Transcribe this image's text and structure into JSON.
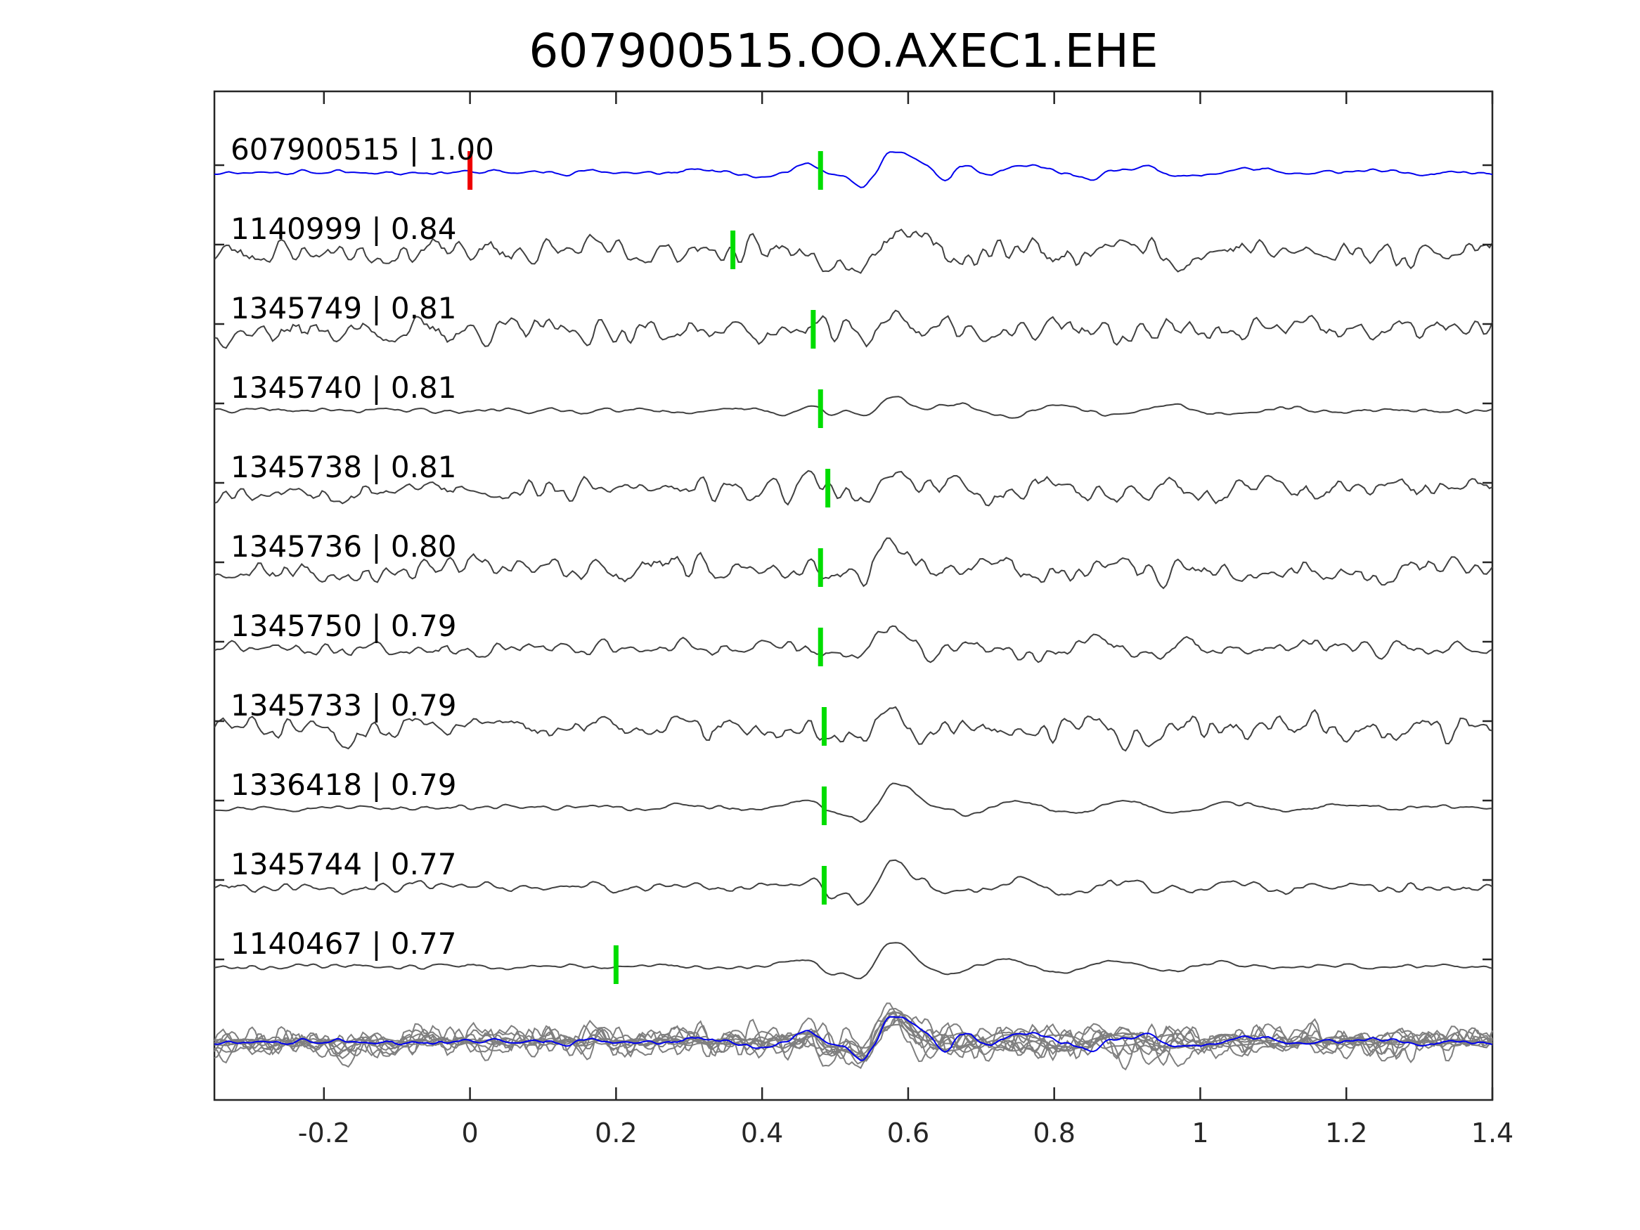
{
  "chart_data": {
    "type": "line",
    "title": "607900515.OO.AXEC1.EHE",
    "xlabel": "",
    "ylabel": "",
    "xlim": [
      -0.35,
      1.4
    ],
    "xticks": [
      -0.2,
      0,
      0.2,
      0.4,
      0.6,
      0.8,
      1,
      1.2,
      1.4
    ],
    "xtick_labels": [
      "-0.2",
      "0",
      "0.2",
      "0.4",
      "0.6",
      "0.8",
      "1",
      "1.2",
      "1.4"
    ],
    "grid": false,
    "reference_pick_time": 0,
    "colors": {
      "master": "#0000ee",
      "trace": "#404040",
      "stack": "#7f7f7f",
      "pick": "#00dd00",
      "origin_pick": "#ee0000"
    },
    "series": [
      {
        "name": "607900515 | 1.00",
        "pick": 0.48,
        "noise": 0.15,
        "seed": 11
      },
      {
        "name": "1140999 | 0.84",
        "pick": 0.36,
        "noise": 0.85,
        "seed": 23
      },
      {
        "name": "1345749 | 0.81",
        "pick": 0.47,
        "noise": 0.8,
        "seed": 37
      },
      {
        "name": "1345740 | 0.81",
        "pick": 0.48,
        "noise": 0.15,
        "seed": 41
      },
      {
        "name": "1345738 | 0.81",
        "pick": 0.49,
        "noise": 0.7,
        "seed": 53
      },
      {
        "name": "1345736 | 0.80",
        "pick": 0.48,
        "noise": 0.75,
        "seed": 67
      },
      {
        "name": "1345750 | 0.79",
        "pick": 0.48,
        "noise": 0.5,
        "seed": 71
      },
      {
        "name": "1345733 | 0.79",
        "pick": 0.485,
        "noise": 0.8,
        "seed": 83
      },
      {
        "name": "1336418 | 0.79",
        "pick": 0.485,
        "noise": 0.15,
        "seed": 97
      },
      {
        "name": "1345744 | 0.77",
        "pick": 0.485,
        "noise": 0.3,
        "seed": 101
      },
      {
        "name": "1140467 | 0.77",
        "pick": 0.2,
        "noise": 0.15,
        "seed": 113
      }
    ]
  }
}
